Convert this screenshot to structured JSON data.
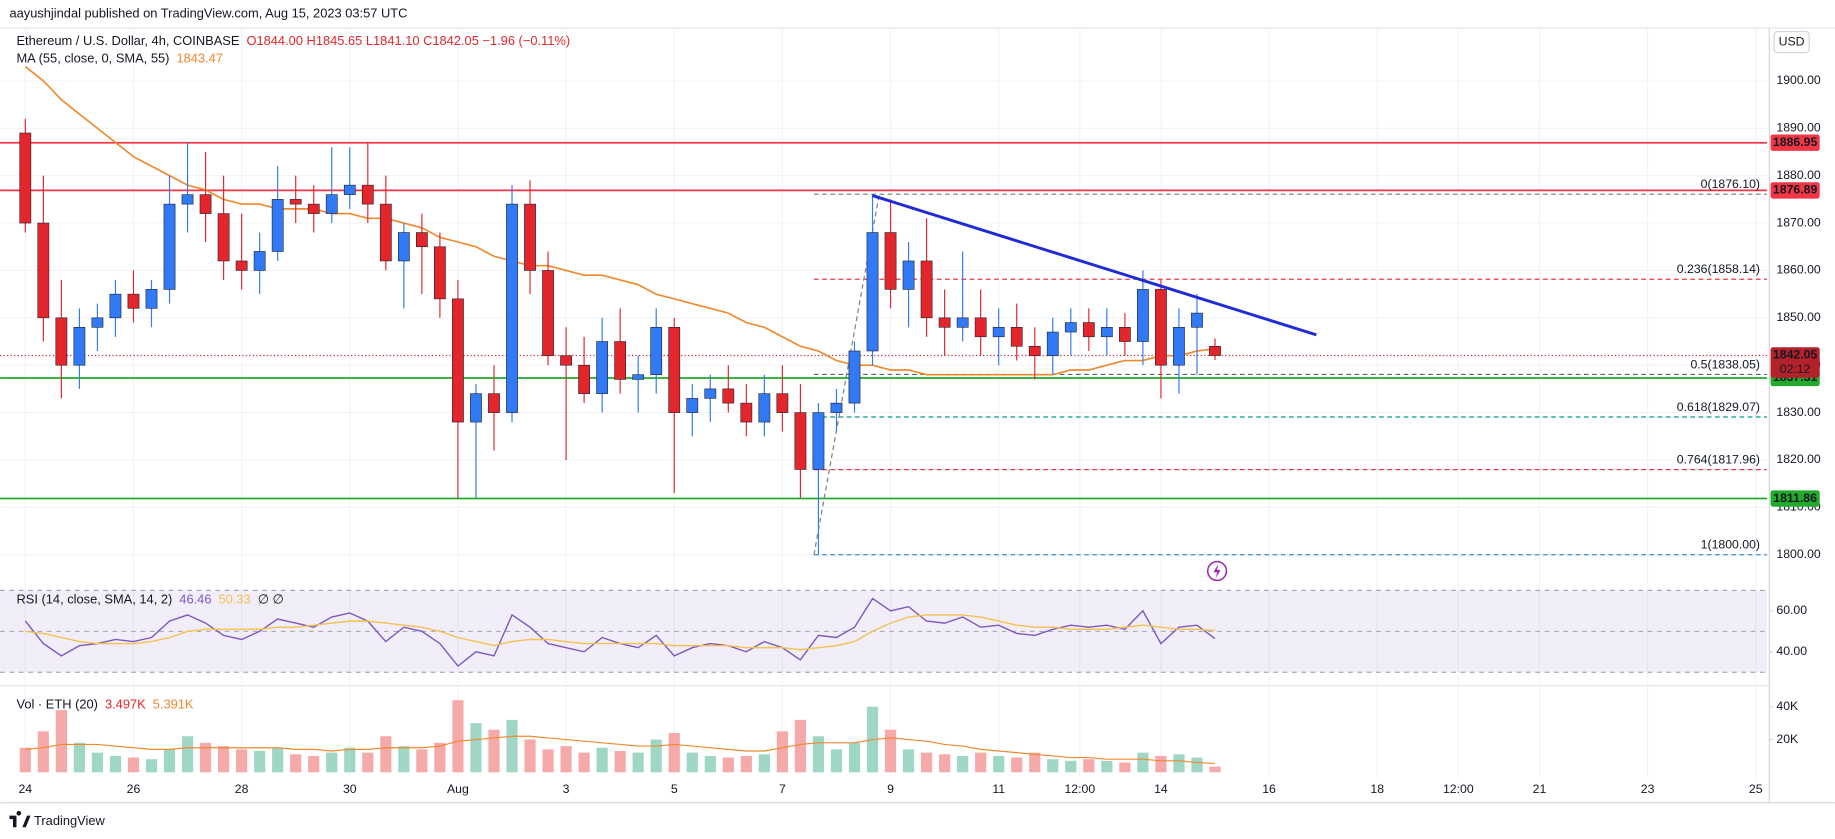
{
  "header": {
    "publisher": "aayushjindal published on TradingView.com, Aug 15, 2023 03:57 UTC",
    "currency": "USD",
    "brand": "TradingView"
  },
  "chart_data": [
    {
      "type": "candlestick",
      "title": "Ethereum / U.S. Dollar, 4h, COINBASE",
      "ohlc_legend": "O1844.00 H1845.65 L1841.10 C1842.05 −1.96 (−0.11%)",
      "up_color": "#3179f5",
      "down_color": "#e3262c",
      "grid": true,
      "xlim": [
        -6,
        773
      ],
      "ylim": [
        1793.6,
        1910.9
      ],
      "xticks": [
        {
          "value": 0,
          "label": "24"
        },
        {
          "value": 48,
          "label": "26"
        },
        {
          "value": 96,
          "label": "28"
        },
        {
          "value": 144,
          "label": "30"
        },
        {
          "value": 192,
          "label": "Aug"
        },
        {
          "value": 240,
          "label": "3"
        },
        {
          "value": 288,
          "label": "5"
        },
        {
          "value": 336,
          "label": "7"
        },
        {
          "value": 384,
          "label": "9"
        },
        {
          "value": 432,
          "label": "11"
        },
        {
          "value": 468,
          "label": "12:00"
        },
        {
          "value": 504,
          "label": "14"
        },
        {
          "value": 552,
          "label": "16"
        },
        {
          "value": 600,
          "label": "18"
        },
        {
          "value": 636,
          "label": "12:00"
        },
        {
          "value": 672,
          "label": "21"
        },
        {
          "value": 720,
          "label": "23"
        },
        {
          "value": 768,
          "label": "25"
        }
      ],
      "yticks": [
        {
          "value": 1800,
          "label": "1800.00"
        },
        {
          "value": 1810,
          "label": "1810.00"
        },
        {
          "value": 1820,
          "label": "1820.00"
        },
        {
          "value": 1830,
          "label": "1830.00"
        },
        {
          "value": 1840,
          "label": "1840.00"
        },
        {
          "value": 1850,
          "label": "1850.00"
        },
        {
          "value": 1860,
          "label": "1860.00"
        },
        {
          "value": 1870,
          "label": "1870.00"
        },
        {
          "value": 1880,
          "label": "1880.00"
        },
        {
          "value": 1890,
          "label": "1890.00"
        },
        {
          "value": 1900,
          "label": "1900.00"
        }
      ],
      "x": [
        0,
        8,
        16,
        24,
        32,
        40,
        48,
        56,
        64,
        72,
        80,
        88,
        96,
        104,
        112,
        120,
        128,
        136,
        144,
        152,
        160,
        168,
        176,
        184,
        192,
        200,
        208,
        216,
        224,
        232,
        240,
        248,
        256,
        264,
        272,
        280,
        288,
        296,
        304,
        312,
        320,
        328,
        336,
        344,
        352,
        360,
        368,
        376,
        384,
        392,
        400,
        408,
        416,
        424,
        432,
        440,
        448,
        456,
        464,
        472,
        480,
        488,
        496,
        504,
        512,
        520,
        528
      ],
      "ohlc": [
        [
          1889,
          1892,
          1868,
          1870
        ],
        [
          1870,
          1880,
          1845,
          1850
        ],
        [
          1850,
          1858,
          1833,
          1840
        ],
        [
          1840,
          1852,
          1835,
          1848
        ],
        [
          1848,
          1853,
          1843,
          1850
        ],
        [
          1850,
          1858,
          1846,
          1855
        ],
        [
          1855,
          1860,
          1849,
          1852
        ],
        [
          1852,
          1858,
          1848,
          1856
        ],
        [
          1856,
          1880,
          1853,
          1874
        ],
        [
          1874,
          1887,
          1868,
          1876
        ],
        [
          1876,
          1885,
          1866,
          1872
        ],
        [
          1872,
          1880,
          1858,
          1862
        ],
        [
          1862,
          1872,
          1856,
          1860
        ],
        [
          1860,
          1868,
          1855,
          1864
        ],
        [
          1864,
          1882,
          1862,
          1875
        ],
        [
          1875,
          1880,
          1870,
          1874
        ],
        [
          1874,
          1878,
          1868,
          1872
        ],
        [
          1872,
          1886,
          1870,
          1876
        ],
        [
          1876,
          1886,
          1873,
          1878
        ],
        [
          1878,
          1887,
          1870,
          1874
        ],
        [
          1874,
          1880,
          1860,
          1862
        ],
        [
          1862,
          1870,
          1852,
          1868
        ],
        [
          1868,
          1872,
          1855,
          1865
        ],
        [
          1865,
          1868,
          1850,
          1854
        ],
        [
          1854,
          1858,
          1812,
          1828
        ],
        [
          1828,
          1836,
          1812,
          1834
        ],
        [
          1834,
          1840,
          1822,
          1830
        ],
        [
          1830,
          1878,
          1828,
          1874
        ],
        [
          1874,
          1879,
          1855,
          1860
        ],
        [
          1860,
          1864,
          1840,
          1842
        ],
        [
          1842,
          1848,
          1820,
          1840
        ],
        [
          1840,
          1846,
          1832,
          1834
        ],
        [
          1834,
          1850,
          1830,
          1845
        ],
        [
          1845,
          1852,
          1834,
          1837
        ],
        [
          1837,
          1842,
          1830,
          1838
        ],
        [
          1838,
          1852,
          1834,
          1848
        ],
        [
          1848,
          1850,
          1813,
          1830
        ],
        [
          1830,
          1836,
          1825,
          1833
        ],
        [
          1833,
          1838,
          1828,
          1835
        ],
        [
          1835,
          1840,
          1830,
          1832
        ],
        [
          1832,
          1836,
          1825,
          1828
        ],
        [
          1828,
          1838,
          1825,
          1834
        ],
        [
          1834,
          1840,
          1826,
          1830
        ],
        [
          1830,
          1836,
          1812,
          1818
        ],
        [
          1818,
          1832,
          1800,
          1830
        ],
        [
          1830,
          1835,
          1826,
          1832
        ],
        [
          1832,
          1845,
          1830,
          1843
        ],
        [
          1843,
          1876,
          1840,
          1868
        ],
        [
          1868,
          1875,
          1852,
          1856
        ],
        [
          1856,
          1866,
          1848,
          1862
        ],
        [
          1862,
          1871,
          1846,
          1850
        ],
        [
          1850,
          1856,
          1842,
          1848
        ],
        [
          1848,
          1864,
          1845,
          1850
        ],
        [
          1850,
          1856,
          1842,
          1846
        ],
        [
          1846,
          1852,
          1840,
          1848
        ],
        [
          1848,
          1853,
          1841,
          1844
        ],
        [
          1844,
          1848,
          1837,
          1842
        ],
        [
          1842,
          1850,
          1838,
          1847
        ],
        [
          1847,
          1852,
          1842,
          1849
        ],
        [
          1849,
          1852,
          1843,
          1846
        ],
        [
          1846,
          1852,
          1842,
          1848
        ],
        [
          1848,
          1851,
          1842,
          1845
        ],
        [
          1845,
          1860,
          1840,
          1856
        ],
        [
          1856,
          1858,
          1833,
          1840
        ],
        [
          1840,
          1852,
          1834,
          1848
        ],
        [
          1848,
          1855,
          1838,
          1851
        ],
        [
          1844,
          1845.65,
          1841.1,
          1842.05
        ]
      ],
      "ma": {
        "name": "MA (55, close, 0, SMA, 55)",
        "color": "#f0892e",
        "values": [
          1903,
          1900,
          1896,
          1893,
          1890,
          1887,
          1884,
          1882,
          1880,
          1878,
          1877,
          1875,
          1874,
          1874,
          1873,
          1873,
          1873,
          1872,
          1872,
          1871,
          1871,
          1870,
          1869,
          1867,
          1866,
          1865,
          1863,
          1862,
          1861,
          1861,
          1860,
          1859,
          1859,
          1858,
          1857,
          1855,
          1854,
          1853,
          1852,
          1851,
          1849,
          1848,
          1846,
          1844,
          1843,
          1841,
          1840,
          1840,
          1839,
          1839,
          1838,
          1838,
          1838,
          1838,
          1838,
          1838,
          1838,
          1838,
          1839,
          1839,
          1840,
          1841,
          1841,
          1842,
          1842,
          1843,
          1843.47
        ]
      },
      "levels": [
        {
          "value": 1886.95,
          "color": "#f23645"
        },
        {
          "value": 1876.89,
          "color": "#f23645"
        },
        {
          "value": 1837.31,
          "color": "#22ab2b"
        },
        {
          "value": 1811.86,
          "color": "#22ab2b"
        }
      ],
      "last_price": {
        "value": 1842.05,
        "countdown": "02:12",
        "color": "#b3212b"
      },
      "fib": {
        "x": [
          350,
          379
        ],
        "y": [
          1800,
          1876.1
        ],
        "color": "#787b86",
        "levels": [
          {
            "value": 1876.1,
            "label": "0(1876.10)",
            "color": "#787b86"
          },
          {
            "value": 1858.14,
            "label": "0.236(1858.14)",
            "color": "#f23645"
          },
          {
            "value": 1838.05,
            "label": "0.5(1838.05)",
            "color": "#5d606b"
          },
          {
            "value": 1829.07,
            "label": "0.618(1829.07)",
            "color": "#089981"
          },
          {
            "value": 1817.96,
            "label": "0.764(1817.96)",
            "color": "#f23645"
          },
          {
            "value": 1800,
            "label": "1(1800.00)",
            "color": "#3d8fd1"
          }
        ]
      },
      "trendline": {
        "x": [
          376,
          573
        ],
        "y": [
          1875.8,
          1846.4
        ],
        "color": "#1f2bd6"
      }
    },
    {
      "type": "line",
      "title": "RSI (14, close, SMA, 14, 2)",
      "na_label": "∅ ∅",
      "xlim": [
        -6,
        773
      ],
      "ylim": [
        25.7,
        72.6
      ],
      "yticks": [
        {
          "value": 40,
          "label": "40.00"
        },
        {
          "value": 60,
          "label": "60.00"
        }
      ],
      "levels": [
        70,
        50,
        30
      ],
      "band_color": "#7e57c2",
      "x": [
        0,
        8,
        16,
        24,
        32,
        40,
        48,
        56,
        64,
        72,
        80,
        88,
        96,
        104,
        112,
        120,
        128,
        136,
        144,
        152,
        160,
        168,
        176,
        184,
        192,
        200,
        208,
        216,
        224,
        232,
        240,
        248,
        256,
        264,
        272,
        280,
        288,
        296,
        304,
        312,
        320,
        328,
        336,
        344,
        352,
        360,
        368,
        376,
        384,
        392,
        400,
        408,
        416,
        424,
        432,
        440,
        448,
        456,
        464,
        472,
        480,
        488,
        496,
        504,
        512,
        520,
        528
      ],
      "series": [
        {
          "color": "#7e57c2",
          "values": [
            55,
            44,
            38,
            43,
            44,
            46,
            45,
            47,
            55,
            58,
            54,
            48,
            46,
            50,
            56,
            54,
            52,
            57,
            59,
            55,
            45,
            52,
            50,
            44,
            33,
            40,
            38,
            58,
            52,
            44,
            42,
            40,
            47,
            44,
            42,
            48,
            38,
            42,
            44,
            43,
            40,
            45,
            42,
            36,
            48,
            47,
            52,
            66,
            60,
            62,
            55,
            54,
            57,
            52,
            53,
            49,
            48,
            51,
            53,
            52,
            53,
            51,
            60,
            44,
            52,
            53,
            46.46
          ]
        },
        {
          "color": "#f2c14e",
          "values": [
            50,
            49,
            47,
            45,
            44,
            44,
            44,
            45,
            47,
            50,
            51,
            51,
            51,
            51,
            52,
            52,
            53,
            54,
            55,
            55,
            54,
            53,
            52,
            50,
            47,
            45,
            43,
            45,
            46,
            46,
            45,
            44,
            44,
            44,
            44,
            44,
            43,
            43,
            43,
            43,
            42,
            42,
            42,
            41,
            42,
            43,
            45,
            50,
            54,
            57,
            58,
            58,
            58,
            57,
            55,
            53,
            52,
            52,
            51,
            51,
            51,
            52,
            53,
            52,
            51,
            51,
            50.33
          ]
        }
      ]
    },
    {
      "type": "bar",
      "title": "Vol · ETH (20)",
      "xlim": [
        -6,
        773
      ],
      "ylim": [
        0,
        50
      ],
      "yticks": [
        {
          "value": 20,
          "label": "20K"
        },
        {
          "value": 40,
          "label": "40K"
        }
      ],
      "x": [
        0,
        8,
        16,
        24,
        32,
        40,
        48,
        56,
        64,
        72,
        80,
        88,
        96,
        104,
        112,
        120,
        128,
        136,
        144,
        152,
        160,
        168,
        176,
        184,
        192,
        200,
        208,
        216,
        224,
        232,
        240,
        248,
        256,
        264,
        272,
        280,
        288,
        296,
        304,
        312,
        320,
        328,
        336,
        344,
        352,
        360,
        368,
        376,
        384,
        392,
        400,
        408,
        416,
        424,
        432,
        440,
        448,
        456,
        464,
        472,
        480,
        488,
        496,
        504,
        512,
        520,
        528
      ],
      "series": [
        {
          "up_color": "#9fd6c4",
          "down_color": "#f5aaa9",
          "last_label": "3.497K",
          "values": [
            15,
            25,
            38,
            18,
            12,
            10,
            9,
            8,
            14,
            22,
            18,
            16,
            14,
            13,
            15,
            11,
            10,
            12,
            15,
            12,
            22,
            16,
            14,
            18,
            44,
            30,
            26,
            32,
            20,
            14,
            16,
            12,
            15,
            13,
            12,
            20,
            24,
            12,
            10,
            9,
            10,
            11,
            25,
            32,
            22,
            14,
            18,
            40,
            26,
            14,
            12,
            11,
            10,
            12,
            10,
            9,
            12,
            8,
            7,
            8,
            7,
            6,
            12,
            10,
            11,
            9,
            3.497
          ]
        },
        {
          "color": "#f0892e",
          "last_label": "5.391K",
          "values": [
            14,
            15,
            17,
            17,
            17,
            16,
            15,
            14,
            14,
            15,
            15,
            15,
            15,
            15,
            15,
            14,
            14,
            13,
            14,
            14,
            15,
            15,
            15,
            16,
            19,
            20,
            21,
            22,
            22,
            21,
            20,
            19,
            18,
            17,
            16,
            16,
            17,
            16,
            15,
            14,
            13,
            13,
            15,
            17,
            18,
            18,
            18,
            20,
            21,
            20,
            19,
            17,
            16,
            14,
            13,
            12,
            11,
            10,
            9,
            9,
            8,
            8,
            8,
            7,
            7,
            6,
            5.391
          ]
        }
      ]
    }
  ]
}
